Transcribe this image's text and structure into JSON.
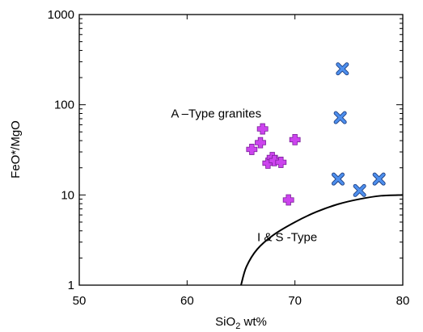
{
  "chart_data": {
    "type": "scatter",
    "title": "",
    "xlabel": {
      "base": "SiO",
      "sub": "2",
      "rest": " wt%"
    },
    "ylabel": "FeO*/MgO",
    "xlim": [
      50,
      80
    ],
    "ylim": [
      1,
      1000
    ],
    "yscale": "log",
    "grid": false,
    "legend": "none",
    "x_ticks": [
      {
        "value": 50,
        "label": "50"
      },
      {
        "value": 60,
        "label": "60"
      },
      {
        "value": 70,
        "label": "70"
      },
      {
        "value": 80,
        "label": "80"
      }
    ],
    "y_ticks": [
      {
        "value": 1,
        "label": "1"
      },
      {
        "value": 10,
        "label": "10"
      },
      {
        "value": 100,
        "label": "100"
      },
      {
        "value": 1000,
        "label": "1000"
      }
    ],
    "annotations": [
      {
        "text": "A –Type granites",
        "x": 58.5,
        "y": 80
      },
      {
        "text": "I & S -Type",
        "x": 66.5,
        "y": 3.4
      }
    ],
    "series": [
      {
        "marker": "plus",
        "color": "#cc44ee",
        "points": [
          {
            "x": 66,
            "y": 32
          },
          {
            "x": 66.8,
            "y": 38
          },
          {
            "x": 67.0,
            "y": 54
          },
          {
            "x": 67.5,
            "y": 22.5
          },
          {
            "x": 67.9,
            "y": 26
          },
          {
            "x": 68.1,
            "y": 24
          },
          {
            "x": 68.7,
            "y": 23
          },
          {
            "x": 69.4,
            "y": 8.8
          },
          {
            "x": 70.0,
            "y": 41
          }
        ]
      },
      {
        "marker": "cross",
        "color": "#4d8fee",
        "points": [
          {
            "x": 74.4,
            "y": 250
          },
          {
            "x": 74.2,
            "y": 72
          },
          {
            "x": 74.0,
            "y": 15
          },
          {
            "x": 76.0,
            "y": 11.2
          },
          {
            "x": 77.8,
            "y": 15
          }
        ]
      }
    ],
    "boundary_curve": {
      "points": [
        [
          65.0,
          1.0
        ],
        [
          65.5,
          1.6
        ],
        [
          66.5,
          2.5
        ],
        [
          68.0,
          3.6
        ],
        [
          70.0,
          5.0
        ],
        [
          72.0,
          6.5
        ],
        [
          74.0,
          7.9
        ],
        [
          76.0,
          9.0
        ],
        [
          78.0,
          9.8
        ],
        [
          80.0,
          10.0
        ]
      ]
    }
  }
}
